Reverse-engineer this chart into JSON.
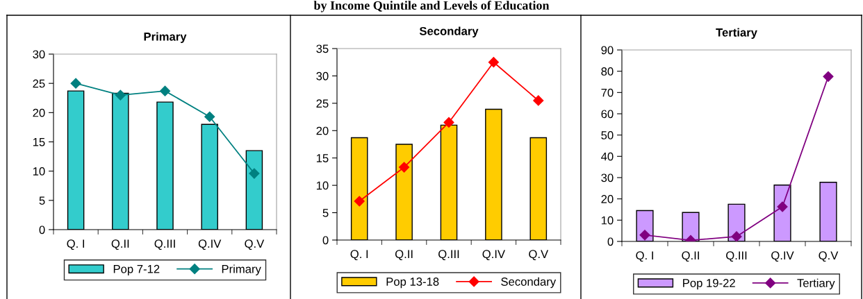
{
  "chart_data": [
    {
      "type": "bar",
      "title": "Primary",
      "annotations": [
        "by Income Quintile and Levels of Education"
      ],
      "categories": [
        "Q. I",
        "Q.II",
        "Q.III",
        "Q.IV",
        "Q.V"
      ],
      "ylim": [
        0,
        30
      ],
      "yticks": [
        0,
        5,
        10,
        15,
        20,
        25,
        30
      ],
      "legend": "bottom",
      "grid": false,
      "series": [
        {
          "name": "Pop 7-12",
          "color": "#33cccc",
          "values": [
            23.7,
            23.3,
            21.8,
            18.0,
            13.5
          ]
        },
        {
          "name": "Primary",
          "type": "line",
          "marker": "diamond",
          "color": "#008080",
          "values": [
            25.0,
            23.0,
            23.7,
            19.3,
            9.6
          ]
        }
      ]
    },
    {
      "type": "bar",
      "title": "Secondary",
      "categories": [
        "Q. I",
        "Q.II",
        "Q.III",
        "Q.IV",
        "Q.V"
      ],
      "ylim": [
        0,
        35
      ],
      "yticks": [
        0,
        5,
        10,
        15,
        20,
        25,
        30,
        35
      ],
      "legend": "bottom",
      "grid": false,
      "series": [
        {
          "name": "Pop 13-18",
          "color": "#ffcc00",
          "values": [
            18.7,
            17.5,
            21.0,
            23.9,
            18.7
          ]
        },
        {
          "name": "Secondary",
          "type": "line",
          "marker": "diamond",
          "color": "#ff0000",
          "values": [
            7.1,
            13.3,
            21.5,
            32.5,
            25.5
          ]
        }
      ]
    },
    {
      "type": "bar",
      "title": "Tertiary",
      "categories": [
        "Q. I",
        "Q.II",
        "Q.III",
        "Q.IV",
        "Q.V"
      ],
      "ylim": [
        0,
        90
      ],
      "yticks": [
        0,
        10,
        20,
        30,
        40,
        50,
        60,
        70,
        80,
        90
      ],
      "legend": "bottom",
      "grid": false,
      "series": [
        {
          "name": "Pop 19-22",
          "color": "#cc99ff",
          "values": [
            14.5,
            13.6,
            17.5,
            26.5,
            27.8
          ]
        },
        {
          "name": "Tertiary",
          "type": "line",
          "marker": "diamond",
          "color": "#800080",
          "values": [
            3.0,
            0.5,
            2.3,
            16.3,
            77.5
          ]
        }
      ]
    }
  ]
}
